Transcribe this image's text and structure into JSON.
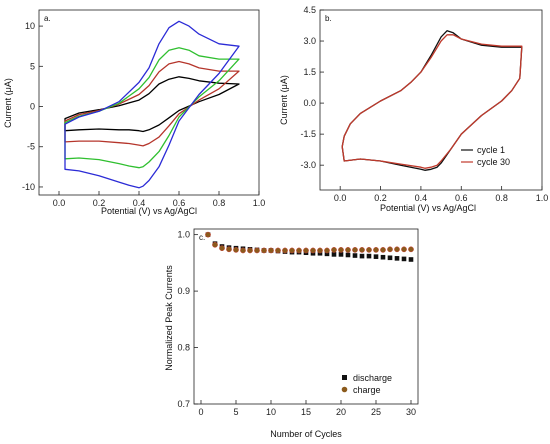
{
  "chart_data": [
    {
      "type": "line",
      "panel_label": "a.",
      "xlabel": "Potential (V) vs Ag/AgCl",
      "ylabel": "Current (μA)",
      "xlim": [
        -0.1,
        1.0
      ],
      "ylim": [
        -11,
        12
      ],
      "xticks": [
        "0.0",
        "0.2",
        "0.4",
        "0.6",
        "0.8",
        "1.0"
      ],
      "yticks": [
        "-10",
        "-5",
        "0",
        "5",
        "10"
      ],
      "series": [
        {
          "color": "#000000",
          "x": [
            0.03,
            0.1,
            0.2,
            0.3,
            0.4,
            0.45,
            0.5,
            0.55,
            0.6,
            0.65,
            0.7,
            0.8,
            0.9,
            0.9,
            0.8,
            0.7,
            0.6,
            0.55,
            0.5,
            0.45,
            0.42,
            0.4,
            0.35,
            0.3,
            0.2,
            0.1,
            0.03
          ],
          "y": [
            -1.5,
            -0.8,
            -0.4,
            0.1,
            0.8,
            1.6,
            2.8,
            3.4,
            3.7,
            3.5,
            3.2,
            2.9,
            2.8,
            2.8,
            1.5,
            0.6,
            -0.5,
            -1.4,
            -2.3,
            -2.9,
            -3.1,
            -3.0,
            -2.9,
            -2.9,
            -2.8,
            -2.9,
            -3.0
          ]
        },
        {
          "color": "#b5352b",
          "x": [
            0.03,
            0.1,
            0.2,
            0.3,
            0.4,
            0.45,
            0.5,
            0.55,
            0.6,
            0.65,
            0.7,
            0.8,
            0.9,
            0.9,
            0.8,
            0.7,
            0.6,
            0.55,
            0.5,
            0.45,
            0.42,
            0.4,
            0.35,
            0.3,
            0.2,
            0.1,
            0.03
          ],
          "y": [
            -1.8,
            -1.0,
            -0.5,
            0.3,
            1.5,
            2.6,
            4.3,
            5.3,
            5.6,
            5.3,
            4.8,
            4.4,
            4.4,
            4.4,
            2.2,
            0.8,
            -0.9,
            -2.4,
            -3.8,
            -4.6,
            -4.9,
            -4.8,
            -4.6,
            -4.5,
            -4.3,
            -4.3,
            -4.4
          ]
        },
        {
          "color": "#2fbf2f",
          "x": [
            0.03,
            0.1,
            0.2,
            0.3,
            0.4,
            0.45,
            0.5,
            0.55,
            0.6,
            0.65,
            0.7,
            0.8,
            0.9,
            0.9,
            0.8,
            0.7,
            0.6,
            0.55,
            0.5,
            0.45,
            0.42,
            0.4,
            0.35,
            0.3,
            0.2,
            0.1,
            0.03
          ],
          "y": [
            -2.0,
            -1.2,
            -0.6,
            0.4,
            2.2,
            3.6,
            5.8,
            7.0,
            7.3,
            7.0,
            6.3,
            5.9,
            5.9,
            5.9,
            3.2,
            1.2,
            -1.3,
            -3.6,
            -5.6,
            -6.9,
            -7.5,
            -7.6,
            -7.4,
            -7.1,
            -6.6,
            -6.4,
            -6.5
          ]
        },
        {
          "color": "#2b2bd6",
          "x": [
            0.03,
            0.1,
            0.2,
            0.3,
            0.4,
            0.45,
            0.5,
            0.55,
            0.6,
            0.65,
            0.7,
            0.8,
            0.9,
            0.9,
            0.8,
            0.7,
            0.6,
            0.55,
            0.5,
            0.45,
            0.42,
            0.4,
            0.35,
            0.3,
            0.2,
            0.1,
            0.03
          ],
          "y": [
            -2.2,
            -1.3,
            -0.6,
            0.6,
            3.0,
            4.8,
            7.8,
            9.8,
            10.6,
            10.0,
            9.0,
            7.8,
            7.5,
            7.5,
            4.1,
            1.5,
            -1.8,
            -4.8,
            -7.5,
            -9.2,
            -9.9,
            -10.1,
            -9.8,
            -9.4,
            -8.6,
            -8.0,
            -7.8
          ]
        }
      ]
    },
    {
      "type": "line",
      "panel_label": "b.",
      "xlabel": "Potential (V) vs Ag/AgCl",
      "ylabel": "Current (μA)",
      "xlim": [
        -0.1,
        1.0
      ],
      "ylim": [
        -4.2,
        4.5
      ],
      "xticks": [
        "0.0",
        "0.2",
        "0.4",
        "0.6",
        "0.8",
        "1.0"
      ],
      "yticks": [
        "-3.0",
        "-1.5",
        "0.0",
        "1.5",
        "3.0",
        "4.5"
      ],
      "legend": "bottom-right",
      "series": [
        {
          "name": "cycle 1",
          "color": "#111111",
          "x": [
            0.01,
            0.02,
            0.05,
            0.1,
            0.2,
            0.3,
            0.35,
            0.4,
            0.45,
            0.5,
            0.53,
            0.56,
            0.6,
            0.7,
            0.8,
            0.88,
            0.9,
            0.89,
            0.85,
            0.8,
            0.7,
            0.6,
            0.55,
            0.5,
            0.48,
            0.45,
            0.42,
            0.4,
            0.3,
            0.2,
            0.1,
            0.02
          ],
          "y": [
            -2.1,
            -1.6,
            -1.0,
            -0.5,
            0.1,
            0.6,
            1.0,
            1.5,
            2.3,
            3.2,
            3.5,
            3.4,
            3.1,
            2.8,
            2.7,
            2.7,
            2.7,
            1.2,
            0.6,
            0.1,
            -0.6,
            -1.5,
            -2.2,
            -2.9,
            -3.1,
            -3.2,
            -3.25,
            -3.2,
            -3.0,
            -2.8,
            -2.7,
            -2.8
          ]
        },
        {
          "name": "cycle 30",
          "color": "#c0392b",
          "x": [
            0.01,
            0.02,
            0.05,
            0.1,
            0.2,
            0.3,
            0.35,
            0.4,
            0.45,
            0.5,
            0.53,
            0.56,
            0.6,
            0.7,
            0.8,
            0.88,
            0.9,
            0.89,
            0.85,
            0.8,
            0.7,
            0.6,
            0.55,
            0.5,
            0.48,
            0.45,
            0.42,
            0.4,
            0.3,
            0.2,
            0.1,
            0.02
          ],
          "y": [
            -2.1,
            -1.6,
            -1.0,
            -0.5,
            0.1,
            0.6,
            1.0,
            1.5,
            2.2,
            3.0,
            3.3,
            3.3,
            3.1,
            2.85,
            2.75,
            2.75,
            2.75,
            1.2,
            0.6,
            0.1,
            -0.6,
            -1.5,
            -2.2,
            -2.8,
            -3.0,
            -3.1,
            -3.15,
            -3.1,
            -2.95,
            -2.8,
            -2.7,
            -2.8
          ]
        }
      ]
    },
    {
      "type": "scatter",
      "panel_label": "c.",
      "xlabel": "Number of Cycles",
      "ylabel": "Normalized Peak Currents",
      "xlim": [
        -1,
        31
      ],
      "ylim": [
        0.7,
        1.01
      ],
      "xticks": [
        "0",
        "5",
        "10",
        "15",
        "20",
        "25",
        "30"
      ],
      "yticks": [
        "0.7",
        "0.8",
        "0.9",
        "1.0"
      ],
      "legend": "bottom-right",
      "series": [
        {
          "name": "discharge",
          "color": "#111111",
          "x": [
            1,
            2,
            3,
            4,
            5,
            6,
            7,
            8,
            9,
            10,
            11,
            12,
            13,
            14,
            15,
            16,
            17,
            18,
            19,
            20,
            21,
            22,
            23,
            24,
            25,
            26,
            27,
            28,
            29,
            30
          ],
          "y": [
            1.0,
            0.984,
            0.979,
            0.977,
            0.976,
            0.975,
            0.974,
            0.973,
            0.972,
            0.972,
            0.971,
            0.97,
            0.969,
            0.969,
            0.968,
            0.967,
            0.967,
            0.966,
            0.965,
            0.965,
            0.964,
            0.963,
            0.962,
            0.962,
            0.961,
            0.96,
            0.959,
            0.958,
            0.957,
            0.956
          ]
        },
        {
          "name": "charge",
          "color": "#8b5a1c",
          "x": [
            1,
            2,
            3,
            4,
            5,
            6,
            7,
            8,
            9,
            10,
            11,
            12,
            13,
            14,
            15,
            16,
            17,
            18,
            19,
            20,
            21,
            22,
            23,
            24,
            25,
            26,
            27,
            28,
            29,
            30
          ],
          "y": [
            1.0,
            0.982,
            0.976,
            0.974,
            0.973,
            0.972,
            0.972,
            0.972,
            0.972,
            0.972,
            0.972,
            0.972,
            0.972,
            0.972,
            0.972,
            0.972,
            0.972,
            0.972,
            0.973,
            0.973,
            0.973,
            0.973,
            0.973,
            0.973,
            0.973,
            0.973,
            0.974,
            0.974,
            0.974,
            0.974
          ]
        }
      ]
    }
  ]
}
